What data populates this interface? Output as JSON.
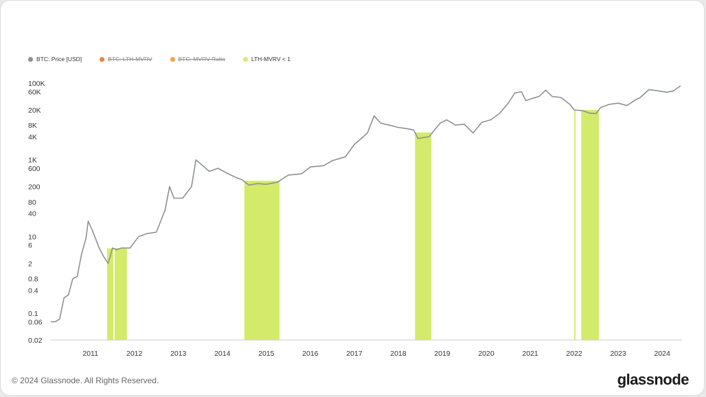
{
  "colors": {
    "price_line": "#8d9190",
    "band": "#d4ea6b",
    "lth_mvrv": "#e8823b",
    "mvrv_ratio": "#f1a24a",
    "axis": "#cccccc"
  },
  "legend": [
    {
      "label": "BTC: Price [USD]",
      "color": "#8d9190",
      "active": true
    },
    {
      "label": "BTC: LTH-MVRV",
      "color": "#e8823b",
      "active": false
    },
    {
      "label": "BTC: MVRV Ratio",
      "color": "#f1a24a",
      "active": false
    },
    {
      "label": "LTH-MVRV < 1",
      "color": "#d4ea6b",
      "active": true
    }
  ],
  "footer": {
    "copyright": "© 2024 Glassnode. All Rights Reserved.",
    "brand": "glassnode"
  },
  "chart_data": {
    "type": "line",
    "y_scale": "log",
    "ylim": [
      0.02,
      100000
    ],
    "xlim": [
      2010.6,
      2024.95
    ],
    "x_ticks": [
      "2011",
      "2012",
      "2013",
      "2014",
      "2015",
      "2016",
      "2017",
      "2018",
      "2019",
      "2020",
      "2021",
      "2022",
      "2023",
      "2024"
    ],
    "y_ticks": [
      {
        "label": "100K",
        "value": 100000
      },
      {
        "label": "60K",
        "value": 60000
      },
      {
        "label": "20K",
        "value": 20000
      },
      {
        "label": "8K",
        "value": 8000
      },
      {
        "label": "4K",
        "value": 4000
      },
      {
        "label": "1K",
        "value": 1000
      },
      {
        "label": "600",
        "value": 600
      },
      {
        "label": "200",
        "value": 200
      },
      {
        "label": "80",
        "value": 80
      },
      {
        "label": "40",
        "value": 40
      },
      {
        "label": "10",
        "value": 10
      },
      {
        "label": "6",
        "value": 6
      },
      {
        "label": "2",
        "value": 2
      },
      {
        "label": "0.8",
        "value": 0.8
      },
      {
        "label": "0.4",
        "value": 0.4
      },
      {
        "label": "0.1",
        "value": 0.1
      },
      {
        "label": "0.06",
        "value": 0.06
      },
      {
        "label": "0.02",
        "value": 0.02
      }
    ],
    "series": [
      {
        "points": [
          [
            2010.6,
            0.06
          ],
          [
            2010.7,
            0.06
          ],
          [
            2010.8,
            0.07
          ],
          [
            2010.9,
            0.25
          ],
          [
            2011.0,
            0.3
          ],
          [
            2011.1,
            0.8
          ],
          [
            2011.2,
            0.9
          ],
          [
            2011.3,
            3.5
          ],
          [
            2011.4,
            9.0
          ],
          [
            2011.45,
            25.0
          ],
          [
            2011.55,
            14.0
          ],
          [
            2011.7,
            5.0
          ],
          [
            2011.8,
            3.0
          ],
          [
            2011.9,
            2.0
          ],
          [
            2011.95,
            3.0
          ],
          [
            2012.0,
            5.0
          ],
          [
            2012.1,
            4.5
          ],
          [
            2012.2,
            5.0
          ],
          [
            2012.4,
            5.0
          ],
          [
            2012.6,
            10.0
          ],
          [
            2012.8,
            12.0
          ],
          [
            2013.0,
            13.0
          ],
          [
            2013.2,
            50.0
          ],
          [
            2013.3,
            200.0
          ],
          [
            2013.4,
            100.0
          ],
          [
            2013.6,
            100.0
          ],
          [
            2013.8,
            200.0
          ],
          [
            2013.9,
            1000.0
          ],
          [
            2014.0,
            800.0
          ],
          [
            2014.2,
            500.0
          ],
          [
            2014.4,
            600.0
          ],
          [
            2014.6,
            450.0
          ],
          [
            2014.8,
            350.0
          ],
          [
            2014.95,
            300.0
          ],
          [
            2015.1,
            220.0
          ],
          [
            2015.3,
            240.0
          ],
          [
            2015.5,
            230.0
          ],
          [
            2015.75,
            260.0
          ],
          [
            2016.0,
            400.0
          ],
          [
            2016.3,
            430.0
          ],
          [
            2016.5,
            650.0
          ],
          [
            2016.8,
            700.0
          ],
          [
            2017.0,
            950.0
          ],
          [
            2017.3,
            1200.0
          ],
          [
            2017.5,
            2500.0
          ],
          [
            2017.8,
            5000.0
          ],
          [
            2017.95,
            14000.0
          ],
          [
            2018.1,
            9000.0
          ],
          [
            2018.3,
            8000.0
          ],
          [
            2018.5,
            7000.0
          ],
          [
            2018.7,
            6500.0
          ],
          [
            2018.85,
            6000.0
          ],
          [
            2018.95,
            3600.0
          ],
          [
            2019.2,
            4000.0
          ],
          [
            2019.45,
            9000.0
          ],
          [
            2019.6,
            11000.0
          ],
          [
            2019.8,
            8000.0
          ],
          [
            2020.0,
            8500.0
          ],
          [
            2020.2,
            5000.0
          ],
          [
            2020.4,
            9500.0
          ],
          [
            2020.6,
            11000.0
          ],
          [
            2020.8,
            16000.0
          ],
          [
            2021.0,
            30000.0
          ],
          [
            2021.15,
            55000.0
          ],
          [
            2021.3,
            60000.0
          ],
          [
            2021.4,
            35000.0
          ],
          [
            2021.55,
            40000.0
          ],
          [
            2021.7,
            45000.0
          ],
          [
            2021.85,
            65000.0
          ],
          [
            2022.0,
            45000.0
          ],
          [
            2022.2,
            42000.0
          ],
          [
            2022.4,
            28000.0
          ],
          [
            2022.5,
            20000.0
          ],
          [
            2022.7,
            19000.0
          ],
          [
            2022.85,
            16500.0
          ],
          [
            2023.0,
            16000.0
          ],
          [
            2023.1,
            23000.0
          ],
          [
            2023.3,
            28000.0
          ],
          [
            2023.5,
            30000.0
          ],
          [
            2023.7,
            26000.0
          ],
          [
            2023.9,
            37000.0
          ],
          [
            2024.0,
            42000.0
          ],
          [
            2024.2,
            68000.0
          ],
          [
            2024.4,
            63000.0
          ],
          [
            2024.6,
            58000.0
          ],
          [
            2024.75,
            62000.0
          ],
          [
            2024.85,
            75000.0
          ],
          [
            2024.92,
            85000.0
          ]
        ]
      }
    ],
    "bands": [
      [
        2011.88,
        2012.02
      ],
      [
        2012.05,
        2012.33
      ],
      [
        2015.0,
        2015.8
      ],
      [
        2018.88,
        2019.25
      ],
      [
        2022.5,
        2022.53
      ],
      [
        2022.66,
        2023.06
      ]
    ]
  }
}
